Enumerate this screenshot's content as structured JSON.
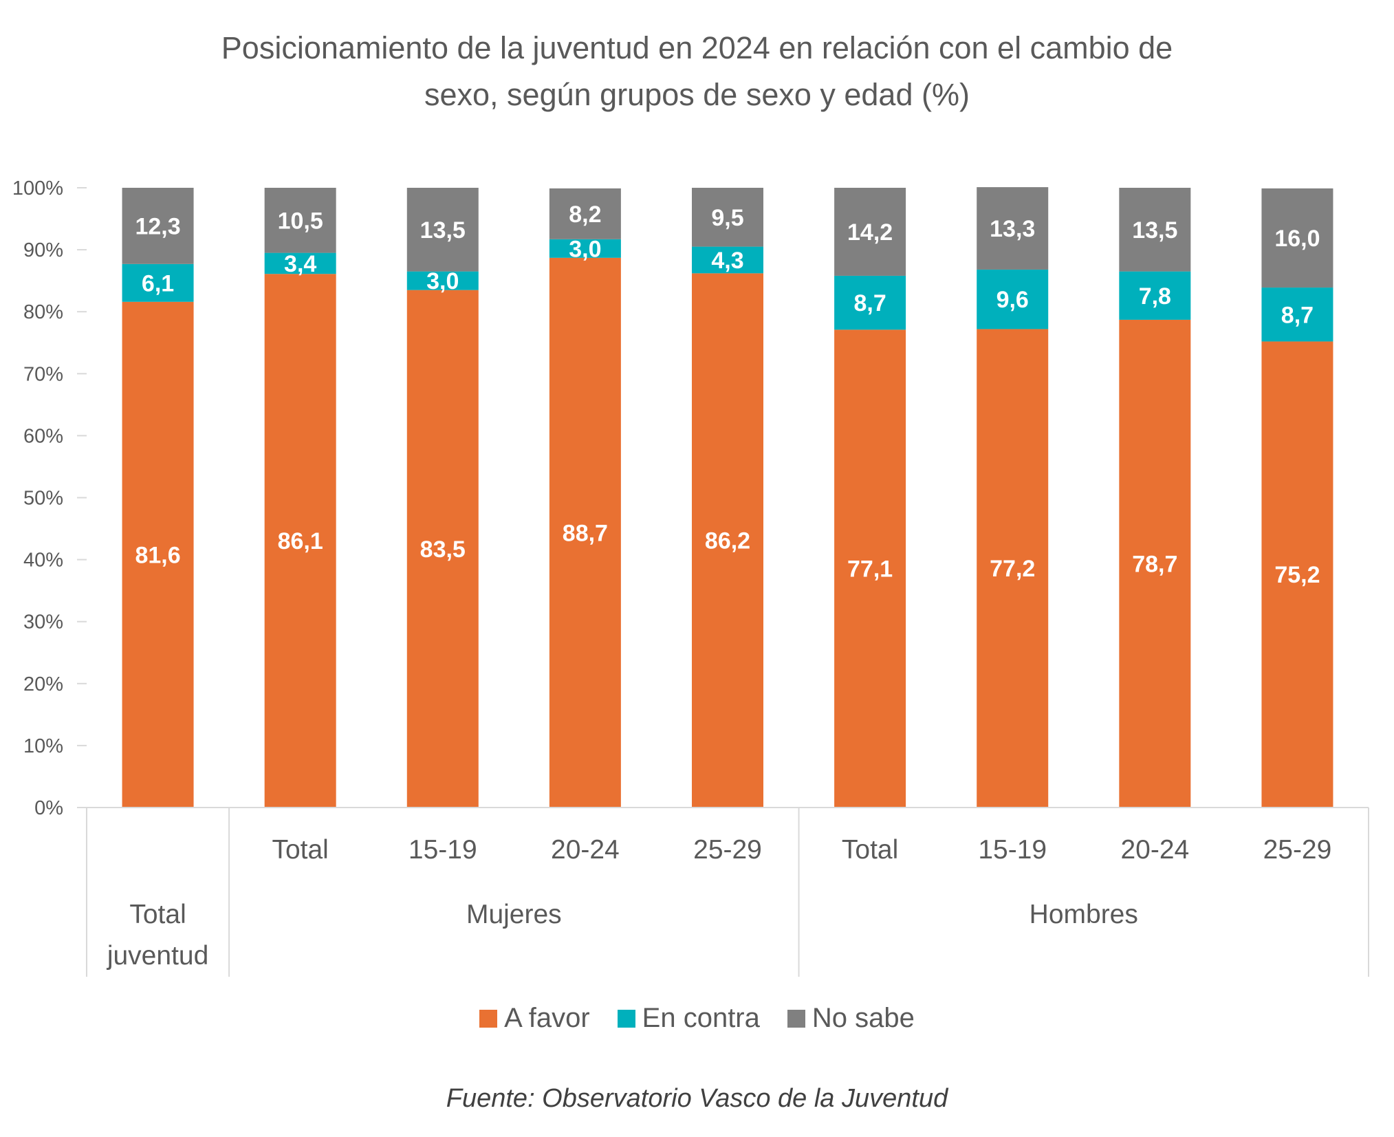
{
  "chart_data": {
    "type": "bar",
    "stacked": true,
    "title": "Posicionamiento de la juventud en 2024 en relación con el cambio de sexo, según grupos de sexo y edad (%)",
    "title_lines": [
      "Posicionamiento de la juventud en 2024 en relación con el cambio de",
      "sexo, según grupos de sexo y edad (%)"
    ],
    "groups": [
      {
        "label": "Total juventud",
        "label_lines": [
          "Total",
          "juventud"
        ],
        "categories": [
          ""
        ]
      },
      {
        "label": "Mujeres",
        "categories": [
          "Total",
          "15-19",
          "20-24",
          "25-29"
        ]
      },
      {
        "label": "Hombres",
        "categories": [
          "Total",
          "15-19",
          "20-24",
          "25-29"
        ]
      }
    ],
    "categories": [
      "Total juventud",
      "Mujeres Total",
      "Mujeres 15-19",
      "Mujeres 20-24",
      "Mujeres 25-29",
      "Hombres Total",
      "Hombres 15-19",
      "Hombres 20-24",
      "Hombres 25-29"
    ],
    "series": [
      {
        "name": "A favor",
        "color": "#E97132",
        "values": [
          81.6,
          86.1,
          83.5,
          88.7,
          86.2,
          77.1,
          77.2,
          78.7,
          75.2
        ],
        "labels": [
          "81,6",
          "86,1",
          "83,5",
          "88,7",
          "86,2",
          "77,1",
          "77,2",
          "78,7",
          "75,2"
        ]
      },
      {
        "name": "En contra",
        "color": "#00B0BC",
        "values": [
          6.1,
          3.4,
          3.0,
          3.0,
          4.3,
          8.7,
          9.6,
          7.8,
          8.7
        ],
        "labels": [
          "6,1",
          "3,4",
          "3,0",
          "3,0",
          "4,3",
          "8,7",
          "9,6",
          "7,8",
          "8,7"
        ]
      },
      {
        "name": "No sabe",
        "color": "#808080",
        "values": [
          12.3,
          10.5,
          13.5,
          8.2,
          9.5,
          14.2,
          13.3,
          13.5,
          16.0
        ],
        "labels": [
          "12,3",
          "10,5",
          "13,5",
          "8,2",
          "9,5",
          "14,2",
          "13,3",
          "13,5",
          "16,0"
        ]
      }
    ],
    "ylim": [
      0,
      100
    ],
    "yticks": [
      "0%",
      "10%",
      "20%",
      "30%",
      "40%",
      "50%",
      "60%",
      "70%",
      "80%",
      "90%",
      "100%"
    ],
    "grid": false,
    "legend_position": "bottom",
    "source": "Fuente: Observatorio Vasco de la Juventud"
  }
}
